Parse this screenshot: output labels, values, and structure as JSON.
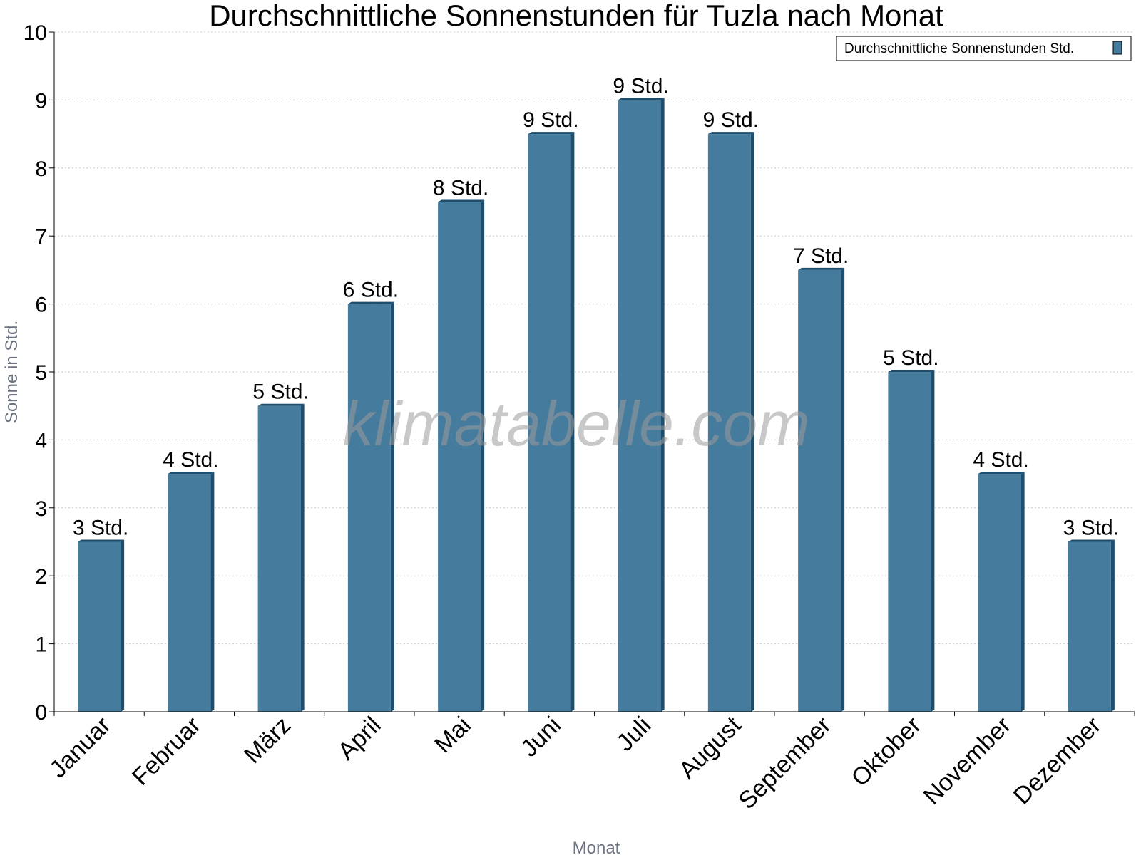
{
  "chart_data": {
    "type": "bar",
    "title": "Durchschnittliche Sonnenstunden für Tuzla nach Monat",
    "xlabel": "Monat",
    "ylabel": "Sonne in Std.",
    "ylim": [
      0,
      10
    ],
    "yticks": [
      0,
      1,
      2,
      3,
      4,
      5,
      6,
      7,
      8,
      9,
      10
    ],
    "grid": true,
    "legend_position": "top-right",
    "categories": [
      "Januar",
      "Februar",
      "März",
      "April",
      "Mai",
      "Juni",
      "Juli",
      "August",
      "September",
      "Oktober",
      "November",
      "Dezember"
    ],
    "series": [
      {
        "name": "Durchschnittliche Sonnenstunden Std.",
        "values": [
          2.5,
          3.5,
          4.5,
          6.0,
          7.5,
          8.5,
          9.0,
          8.5,
          6.5,
          5.0,
          3.5,
          2.5
        ],
        "labels": [
          "3 Std.",
          "4 Std.",
          "5 Std.",
          "6 Std.",
          "8 Std.",
          "9 Std.",
          "9 Std.",
          "9 Std.",
          "7 Std.",
          "5 Std.",
          "4 Std.",
          "3 Std."
        ]
      }
    ],
    "colors": {
      "bar": "#457b9d",
      "bar_side": "#1d4e6e",
      "bar_top": "#1d4e6e"
    }
  },
  "watermark": "klimatabelle.com"
}
